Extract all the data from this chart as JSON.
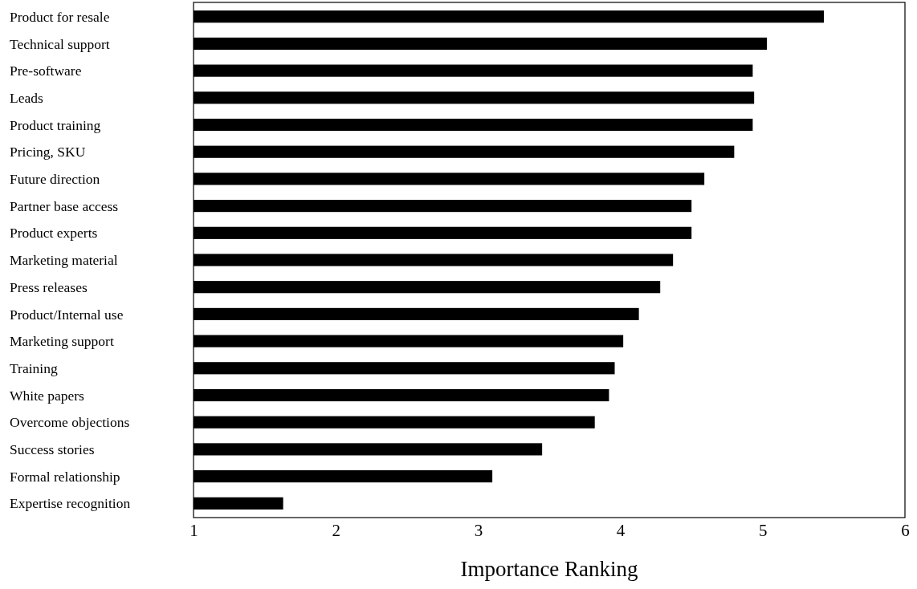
{
  "chart_data": {
    "type": "bar",
    "orientation": "horizontal",
    "xlabel": "Importance Ranking",
    "categories": [
      "Product for resale",
      "Technical support",
      "Pre-software",
      "Leads",
      "Product training",
      "Pricing, SKU",
      "Future direction",
      "Partner base access",
      "Product experts",
      "Marketing material",
      "Press releases",
      "Product/Internal use",
      "Marketing support",
      "Training",
      "White papers",
      "Overcome objections",
      "Success stories",
      "Formal relationship",
      "Expertise recognition"
    ],
    "values": [
      5.43,
      5.03,
      4.93,
      4.94,
      4.93,
      4.8,
      4.59,
      4.5,
      4.5,
      4.37,
      4.28,
      4.13,
      4.02,
      3.96,
      3.92,
      3.82,
      3.45,
      3.1,
      1.63
    ],
    "color": "#000000",
    "xlim": [
      1,
      6
    ],
    "xticks": [
      1,
      2,
      3,
      4,
      5,
      6
    ]
  }
}
